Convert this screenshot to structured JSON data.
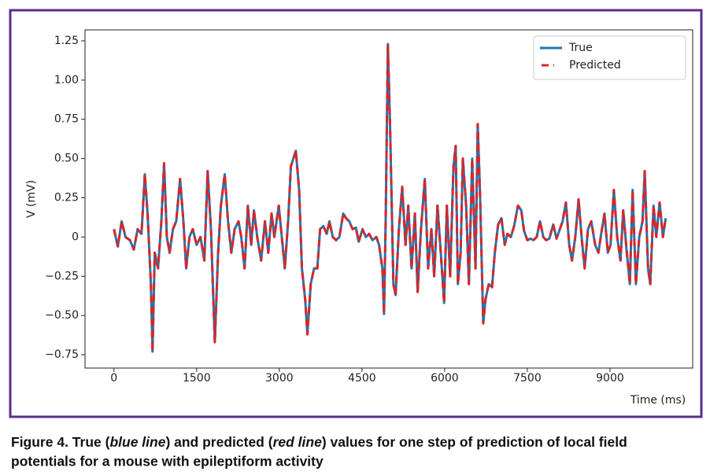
{
  "chart_data": {
    "type": "line",
    "xlabel": "Time (ms)",
    "ylabel": "V (mV)",
    "xlim": [
      -525,
      10500
    ],
    "ylim": [
      -0.835,
      1.32
    ],
    "xticks": [
      0,
      1500,
      3000,
      4500,
      6000,
      7500,
      9000
    ],
    "yticks": [
      {
        "value": -0.75,
        "label": "−0.75"
      },
      {
        "value": -0.5,
        "label": "−0.50"
      },
      {
        "value": -0.25,
        "label": "−0.25"
      },
      0,
      0.25,
      {
        "value": 0.5,
        "label": "0.50"
      },
      0.75,
      {
        "value": 1.0,
        "label": "1.00"
      },
      1.25
    ],
    "legend": "upper right",
    "x": [
      0,
      70,
      140,
      210,
      290,
      360,
      430,
      500,
      560,
      610,
      670,
      700,
      740,
      800,
      860,
      910,
      960,
      1010,
      1070,
      1130,
      1200,
      1260,
      1310,
      1370,
      1430,
      1500,
      1570,
      1640,
      1700,
      1760,
      1830,
      1890,
      1940,
      2010,
      2070,
      2130,
      2190,
      2260,
      2310,
      2370,
      2430,
      2490,
      2540,
      2600,
      2670,
      2740,
      2800,
      2860,
      2910,
      2990,
      3040,
      3100,
      3160,
      3210,
      3300,
      3360,
      3410,
      3470,
      3510,
      3570,
      3630,
      3690,
      3740,
      3800,
      3860,
      3910,
      3970,
      4030,
      4090,
      4160,
      4210,
      4270,
      4330,
      4390,
      4440,
      4510,
      4570,
      4630,
      4690,
      4760,
      4810,
      4870,
      4900,
      4930,
      4970,
      5010,
      5070,
      5110,
      5170,
      5230,
      5290,
      5340,
      5400,
      5460,
      5510,
      5570,
      5640,
      5700,
      5760,
      5810,
      5870,
      5930,
      5990,
      6040,
      6100,
      6160,
      6200,
      6240,
      6290,
      6330,
      6390,
      6440,
      6500,
      6560,
      6600,
      6640,
      6700,
      6740,
      6800,
      6860,
      6910,
      6970,
      7030,
      7090,
      7140,
      7200,
      7260,
      7330,
      7390,
      7440,
      7500,
      7560,
      7610,
      7670,
      7730,
      7790,
      7840,
      7900,
      7970,
      8030,
      8090,
      8140,
      8200,
      8260,
      8310,
      8370,
      8430,
      8490,
      8540,
      8600,
      8660,
      8730,
      8790,
      8840,
      8900,
      8960,
      9010,
      9070,
      9130,
      9190,
      9240,
      9300,
      9360,
      9410,
      9470,
      9530,
      9590,
      9630,
      9690,
      9730,
      9790,
      9840,
      9900,
      9960,
      10010
    ],
    "series": [
      {
        "name": "True",
        "color": "#1f77b4",
        "dash": false,
        "values": [
          0.05,
          -0.06,
          0.1,
          0.0,
          -0.02,
          -0.08,
          0.05,
          0.02,
          0.4,
          0.15,
          -0.3,
          -0.73,
          -0.1,
          -0.2,
          0.1,
          0.47,
          0.0,
          -0.1,
          0.05,
          0.1,
          0.37,
          0.1,
          -0.2,
          0.0,
          0.05,
          -0.05,
          0.0,
          -0.15,
          0.42,
          0.05,
          -0.67,
          -0.1,
          0.2,
          0.4,
          0.1,
          -0.1,
          0.05,
          0.1,
          0.0,
          -0.2,
          0.2,
          -0.05,
          0.17,
          0.0,
          -0.15,
          0.1,
          -0.1,
          0.15,
          0.0,
          0.2,
          0.02,
          -0.2,
          0.1,
          0.45,
          0.55,
          0.3,
          -0.2,
          -0.4,
          -0.62,
          -0.3,
          -0.2,
          -0.2,
          0.05,
          0.07,
          0.02,
          0.1,
          0.0,
          -0.02,
          0.0,
          0.15,
          0.12,
          0.1,
          0.05,
          0.06,
          -0.03,
          0.05,
          0.0,
          0.02,
          -0.02,
          0.0,
          -0.05,
          -0.2,
          -0.49,
          0.1,
          1.23,
          0.7,
          -0.3,
          -0.37,
          0.05,
          0.32,
          -0.05,
          0.2,
          -0.2,
          0.15,
          -0.35,
          0.05,
          0.37,
          -0.2,
          0.05,
          -0.25,
          0.2,
          -0.1,
          -0.42,
          0.2,
          -0.25,
          0.45,
          0.58,
          -0.3,
          -0.1,
          0.5,
          0.2,
          -0.3,
          0.5,
          -0.2,
          0.72,
          0.3,
          -0.55,
          -0.4,
          -0.3,
          -0.32,
          -0.1,
          0.08,
          0.12,
          -0.05,
          0.02,
          0.0,
          0.07,
          0.2,
          0.17,
          0.04,
          -0.02,
          -0.01,
          -0.02,
          0.0,
          0.1,
          0.0,
          -0.02,
          -0.01,
          0.08,
          -0.01,
          0.05,
          0.1,
          0.22,
          -0.05,
          -0.15,
          0.0,
          0.24,
          -0.02,
          -0.2,
          0.05,
          0.1,
          -0.05,
          -0.1,
          0.02,
          0.15,
          -0.1,
          -0.05,
          0.3,
          0.0,
          -0.15,
          0.17,
          -0.08,
          -0.3,
          0.3,
          -0.3,
          0.0,
          0.1,
          0.42,
          -0.2,
          -0.3,
          0.2,
          0.0,
          0.22,
          0.0,
          0.12
        ]
      },
      {
        "name": "Predicted",
        "color": "#d62728",
        "dash": true,
        "values": [
          0.05,
          -0.06,
          0.1,
          0.0,
          -0.02,
          -0.08,
          0.05,
          0.02,
          0.4,
          0.15,
          -0.3,
          -0.73,
          -0.1,
          -0.2,
          0.1,
          0.47,
          0.0,
          -0.1,
          0.05,
          0.1,
          0.37,
          0.1,
          -0.2,
          0.0,
          0.05,
          -0.05,
          0.0,
          -0.15,
          0.42,
          0.05,
          -0.67,
          -0.1,
          0.2,
          0.4,
          0.1,
          -0.1,
          0.05,
          0.1,
          0.0,
          -0.2,
          0.2,
          -0.05,
          0.17,
          0.0,
          -0.15,
          0.1,
          -0.1,
          0.15,
          0.0,
          0.2,
          0.02,
          -0.2,
          0.1,
          0.45,
          0.55,
          0.3,
          -0.2,
          -0.4,
          -0.62,
          -0.3,
          -0.2,
          -0.2,
          0.05,
          0.07,
          0.02,
          0.1,
          0.0,
          -0.02,
          0.0,
          0.15,
          0.12,
          0.1,
          0.05,
          0.06,
          -0.03,
          0.05,
          0.0,
          0.02,
          -0.02,
          0.0,
          -0.05,
          -0.2,
          -0.49,
          0.1,
          1.23,
          0.7,
          -0.3,
          -0.37,
          0.05,
          0.32,
          -0.05,
          0.2,
          -0.2,
          0.15,
          -0.35,
          0.05,
          0.37,
          -0.2,
          0.05,
          -0.25,
          0.2,
          -0.1,
          -0.42,
          0.2,
          -0.25,
          0.45,
          0.58,
          -0.3,
          -0.1,
          0.5,
          0.2,
          -0.3,
          0.5,
          -0.2,
          0.72,
          0.3,
          -0.55,
          -0.4,
          -0.3,
          -0.32,
          -0.1,
          0.08,
          0.12,
          -0.05,
          0.02,
          0.0,
          0.07,
          0.2,
          0.17,
          0.04,
          -0.02,
          -0.01,
          -0.02,
          0.0,
          0.1,
          0.0,
          -0.02,
          -0.01,
          0.08,
          -0.01,
          0.05,
          0.1,
          0.22,
          -0.05,
          -0.15,
          0.0,
          0.24,
          -0.02,
          -0.2,
          0.05,
          0.1,
          -0.05,
          -0.1,
          0.02,
          0.15,
          -0.1,
          -0.05,
          0.3,
          0.0,
          -0.15,
          0.17,
          -0.08,
          -0.3,
          0.3,
          -0.3,
          0.0,
          0.1,
          0.42,
          -0.2,
          -0.3,
          0.2,
          0.0,
          0.22,
          0.0,
          0.12
        ]
      }
    ]
  },
  "caption": [
    "Figure 4. True (",
    "blue line",
    ") and predicted (",
    "red line",
    ") values for one step of prediction of local field",
    "potentials for a mouse with epileptiform activity"
  ]
}
